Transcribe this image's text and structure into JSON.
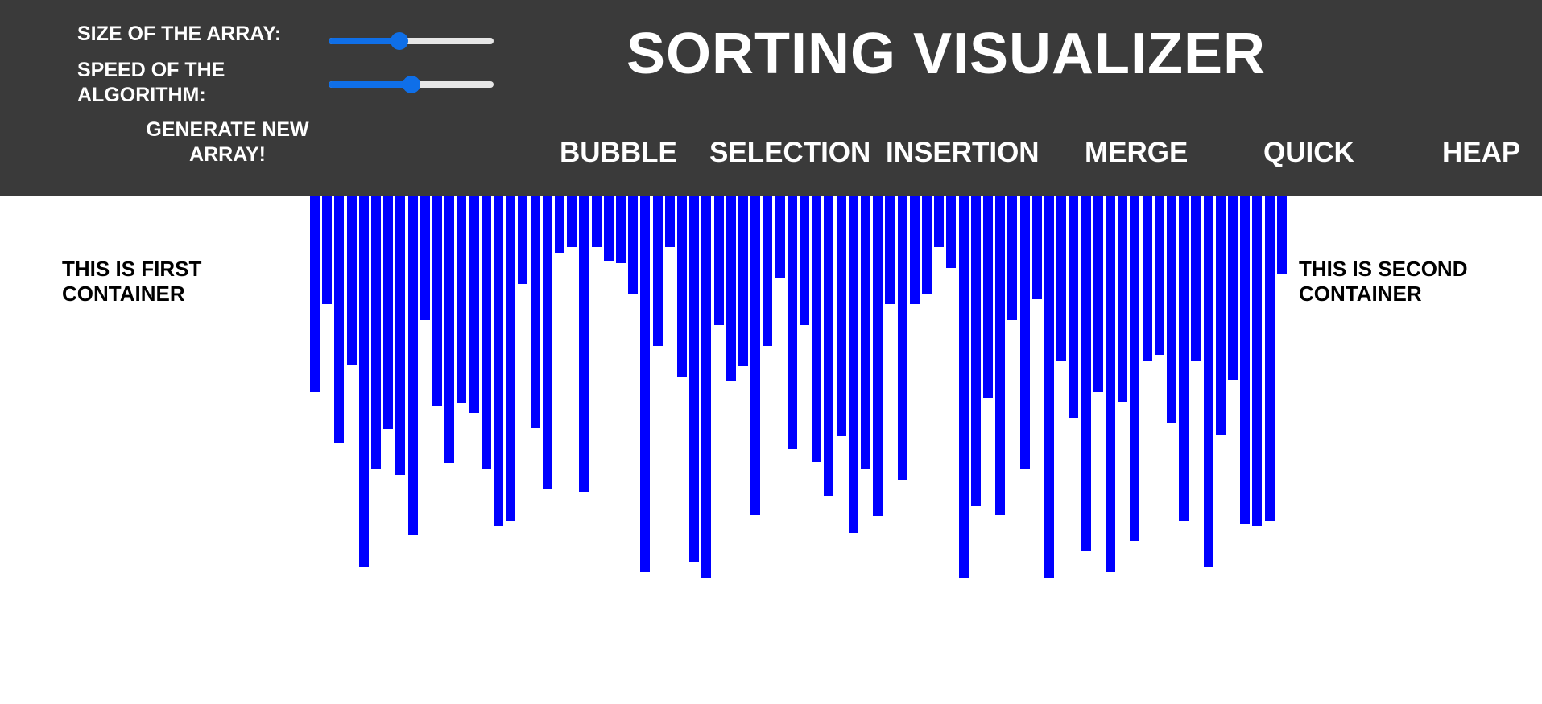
{
  "header": {
    "title": "SORTING VISUALIZER",
    "size_label": "SIZE OF THE ARRAY:",
    "speed_label": "SPEED OF THE ALGORITHM:",
    "size_slider_value": 0.43,
    "speed_slider_value": 0.5,
    "generate_button": "GENERATE NEW ARRAY!",
    "algorithms": [
      {
        "name": "bubble",
        "label": "BUBBLE"
      },
      {
        "name": "selection",
        "label": "SELECTION"
      },
      {
        "name": "insertion",
        "label": "INSERTION"
      },
      {
        "name": "merge",
        "label": "MERGE"
      },
      {
        "name": "quick",
        "label": "QUICK"
      },
      {
        "name": "heap",
        "label": "HEAP"
      }
    ]
  },
  "containers": {
    "first": "THIS IS FIRST CONTAINER",
    "second": "THIS IS SECOND CONTAINER"
  },
  "colors": {
    "header_bg": "#3a3a3a",
    "bar": "#0000ff",
    "slider_accent": "#0f6fe8"
  },
  "array": {
    "values": [
      243,
      134,
      307,
      210,
      461,
      339,
      289,
      346,
      421,
      154,
      261,
      332,
      257,
      269,
      339,
      410,
      403,
      109,
      288,
      364,
      70,
      63,
      368,
      63,
      80,
      83,
      122,
      467,
      186,
      63,
      225,
      455,
      474,
      160,
      229,
      211,
      396,
      186,
      101,
      314,
      160,
      330,
      373,
      298,
      419,
      339,
      397,
      134,
      352,
      134,
      122,
      63,
      89,
      474,
      385,
      251,
      396,
      154,
      339,
      128,
      474,
      205,
      276,
      441,
      243,
      467,
      256,
      429,
      205,
      197,
      282,
      403,
      205,
      461,
      297,
      228,
      407,
      410,
      403,
      96
    ]
  }
}
